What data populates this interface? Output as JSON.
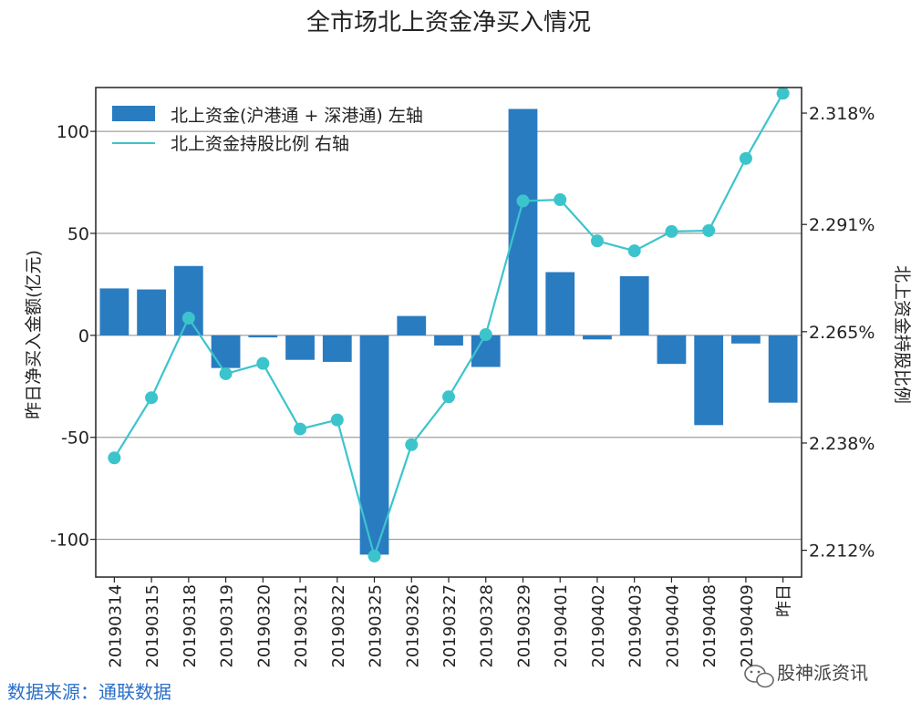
{
  "chart_data": {
    "type": "bar+line",
    "title": "全市场北上资金净买入情况",
    "categories": [
      "20190314",
      "20190315",
      "20190318",
      "20190319",
      "20190320",
      "20190321",
      "20190322",
      "20190325",
      "20190326",
      "20190327",
      "20190328",
      "20190329",
      "20190401",
      "20190402",
      "20190403",
      "20190404",
      "20190408",
      "20190409",
      "昨日"
    ],
    "series": [
      {
        "name": "北上资金(沪港通 + 深港通) 左轴",
        "kind": "bar",
        "axis": "left",
        "color": "#2a7cc1",
        "values": [
          23,
          22.5,
          34,
          -16,
          -1,
          -12,
          -13,
          -107.5,
          9.5,
          -5,
          -15.5,
          111,
          31,
          -2,
          29,
          -14,
          -44,
          -4,
          -33
        ]
      },
      {
        "name": "北上资金持股比例 右轴",
        "kind": "line",
        "axis": "right",
        "color": "#3cc4cc",
        "values": [
          2.2344,
          2.249,
          2.2683,
          2.2548,
          2.2573,
          2.2414,
          2.2436,
          2.2106,
          2.2376,
          2.2492,
          2.2643,
          2.2967,
          2.297,
          2.287,
          2.2846,
          2.2893,
          2.2895,
          2.307,
          2.3228
        ]
      }
    ],
    "ylabel": "昨日净买入金额(亿元)",
    "y2label": "北上资金持股比例",
    "ylim": [
      -118.5,
      121.5
    ],
    "yticks": [
      100,
      50,
      0,
      -50,
      -100
    ],
    "ytick_labels": [
      "100",
      "50",
      "0",
      "-50",
      "-100"
    ],
    "y2lim": [
      2.2055,
      2.3242
    ],
    "y2ticks": [
      2.318,
      2.291,
      2.265,
      2.238,
      2.212
    ],
    "y2tick_labels": [
      "2.318%",
      "2.291%",
      "2.265%",
      "2.238%",
      "2.212%"
    ],
    "grid": true,
    "legend_position": "top-left"
  },
  "footer": {
    "source": "数据来源：通联数据",
    "watermark": "股神派资讯"
  },
  "colors": {
    "bar": "#2a7cc1",
    "line": "#3cc4cc",
    "source_text": "#2a6fc9"
  }
}
